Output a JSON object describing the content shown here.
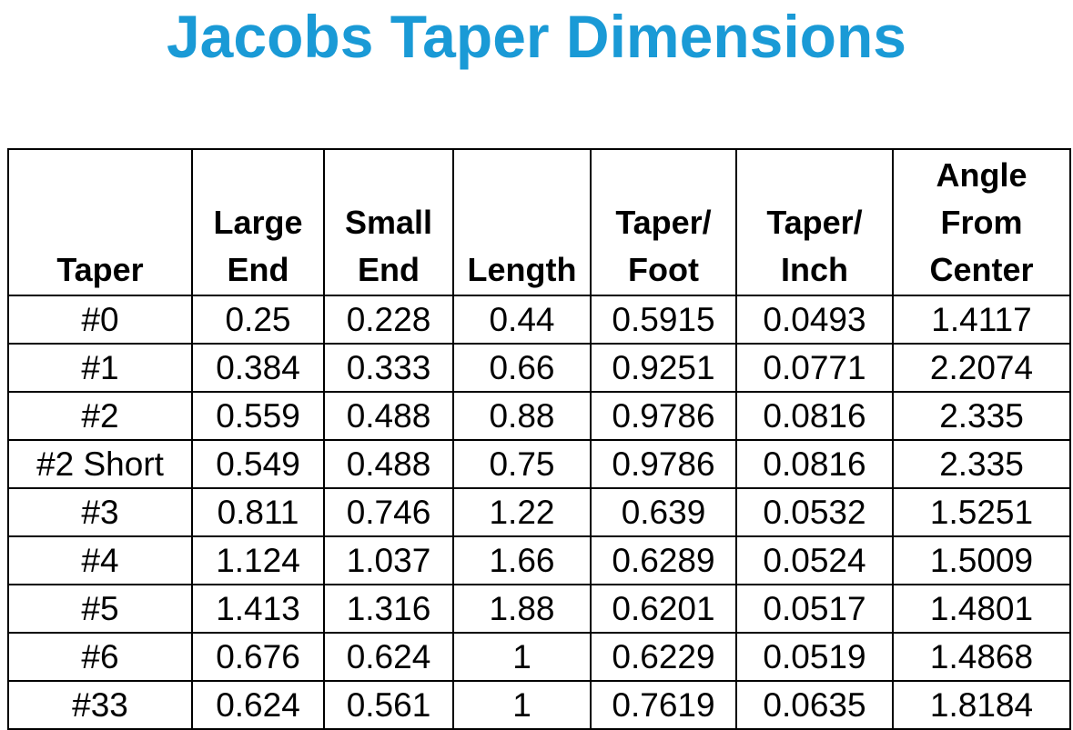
{
  "title": "Jacobs Taper Dimensions",
  "table": {
    "header": [
      "Taper",
      "Large\nEnd",
      "Small\nEnd",
      "Length",
      "Taper/\nFoot",
      "Taper/\nInch",
      "Angle\nFrom\nCenter"
    ],
    "rows": [
      [
        "#0",
        "0.25",
        "0.228",
        "0.44",
        "0.5915",
        "0.0493",
        "1.4117"
      ],
      [
        "#1",
        "0.384",
        "0.333",
        "0.66",
        "0.9251",
        "0.0771",
        "2.2074"
      ],
      [
        "#2",
        "0.559",
        "0.488",
        "0.88",
        "0.9786",
        "0.0816",
        "2.335"
      ],
      [
        "#2 Short",
        "0.549",
        "0.488",
        "0.75",
        "0.9786",
        "0.0816",
        "2.335"
      ],
      [
        "#3",
        "0.811",
        "0.746",
        "1.22",
        "0.639",
        "0.0532",
        "1.5251"
      ],
      [
        "#4",
        "1.124",
        "1.037",
        "1.66",
        "0.6289",
        "0.0524",
        "1.5009"
      ],
      [
        "#5",
        "1.413",
        "1.316",
        "1.88",
        "0.6201",
        "0.0517",
        "1.4801"
      ],
      [
        "#6",
        "0.676",
        "0.624",
        "1",
        "0.6229",
        "0.0519",
        "1.4868"
      ],
      [
        "#33",
        "0.624",
        "0.561",
        "1",
        "0.7619",
        "0.0635",
        "1.8184"
      ]
    ]
  }
}
